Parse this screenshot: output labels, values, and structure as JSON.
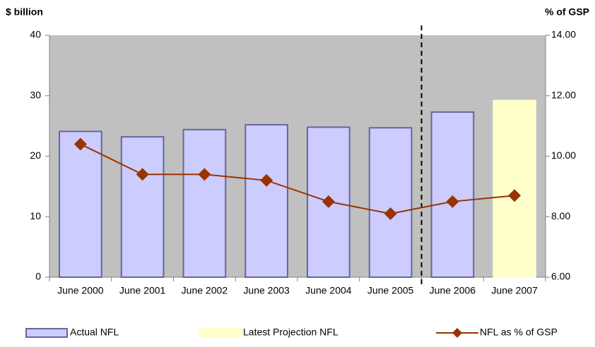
{
  "chart_data": {
    "type": "bar-line",
    "y_label": "$ billion",
    "y2_label": "% of GSP",
    "categories": [
      "June 2000",
      "June 2001",
      "June 2002",
      "June 2003",
      "June 2004",
      "June 2005",
      "June 2006",
      "June 2007"
    ],
    "series": [
      {
        "name": "Actual NFL",
        "type": "bar",
        "color": "#ccccff",
        "values": [
          24.1,
          23.2,
          24.4,
          25.2,
          24.8,
          24.7,
          27.3,
          null
        ]
      },
      {
        "name": "Latest Projection NFL",
        "type": "bar",
        "color": "#ffffcc",
        "values": [
          null,
          null,
          null,
          null,
          null,
          null,
          null,
          29.2
        ]
      },
      {
        "name": "NFL as % of GSP",
        "type": "line",
        "axis": "y2",
        "color": "#993300",
        "values": [
          10.4,
          9.4,
          9.4,
          9.2,
          8.5,
          8.1,
          8.5,
          8.7
        ]
      }
    ],
    "ylim": [
      0,
      40
    ],
    "yticks": [
      0,
      10,
      20,
      30,
      40
    ],
    "y2lim": [
      6,
      14
    ],
    "y2ticks": [
      {
        "value": 6,
        "label": "6.00"
      },
      {
        "value": 8,
        "label": "8.00"
      },
      {
        "value": 10,
        "label": "10.00"
      },
      {
        "value": 12,
        "label": "12.00"
      },
      {
        "value": 14,
        "label": "14.00"
      }
    ]
  }
}
